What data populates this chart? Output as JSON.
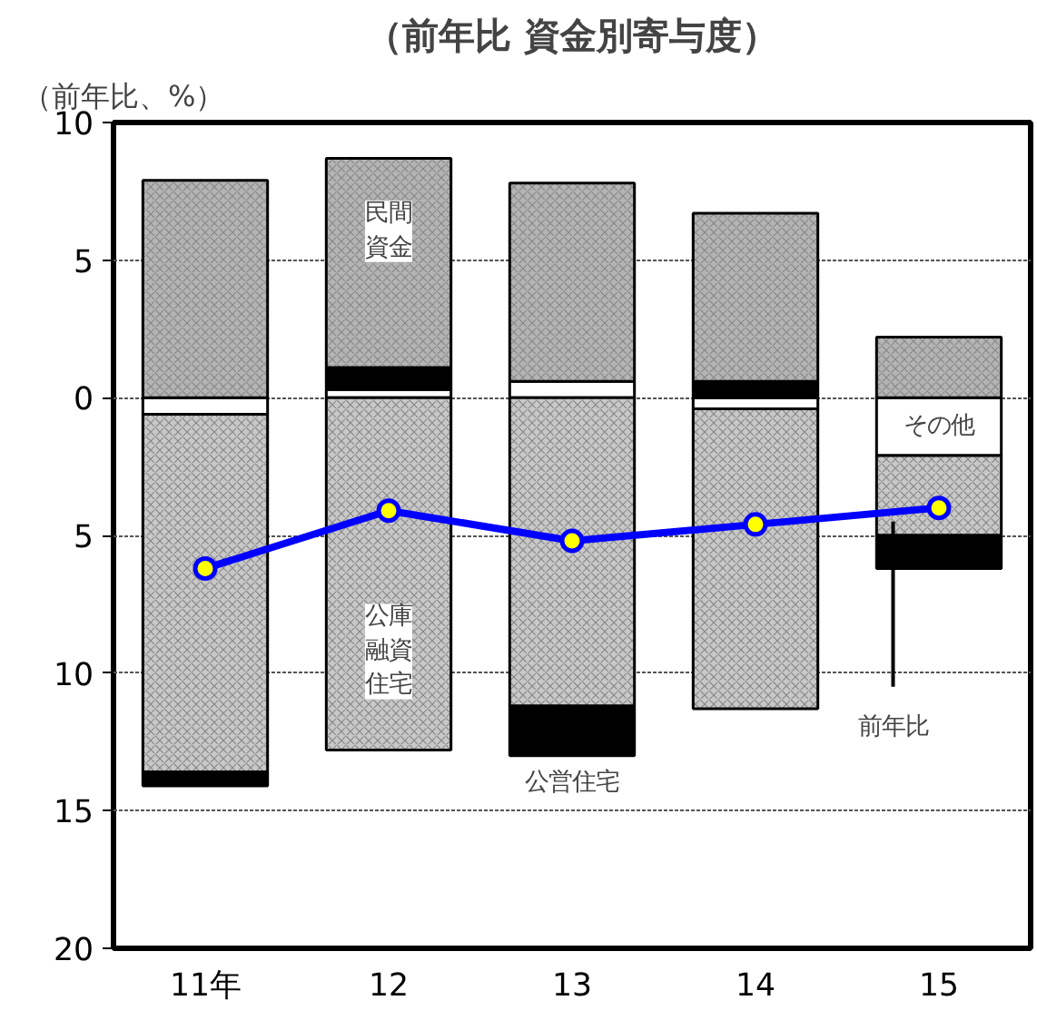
{
  "chart_data": {
    "type": "bar",
    "stacked": true,
    "title": "（前年比 資金別寄与度）",
    "ylabel": "（前年比、%）",
    "categories": [
      "11年",
      "12",
      "13",
      "14",
      "15"
    ],
    "series": [
      {
        "name": "その他",
        "color": "#ffffff",
        "values": [
          -0.6,
          0.3,
          0.6,
          -0.4,
          -2.1
        ]
      },
      {
        "name": "公庫融資住宅",
        "color": "#c8c8c8",
        "values": [
          -13.0,
          -12.8,
          -11.2,
          -10.9,
          -2.9
        ]
      },
      {
        "name": "公営住宅",
        "color": "#000000",
        "values": [
          -0.5,
          0.8,
          -1.8,
          0.6,
          -1.2
        ]
      },
      {
        "name": "民間資金",
        "color": "#b4b4b4",
        "values": [
          7.9,
          7.6,
          7.2,
          6.1,
          2.2
        ]
      },
      {
        "name": "前年比",
        "type": "line",
        "color": "#0000ff",
        "values": [
          -6.2,
          -4.1,
          -5.2,
          -4.6,
          -4.0
        ]
      }
    ],
    "ylim": [
      -20,
      10
    ],
    "yticks": [
      10,
      5,
      0,
      {
        "value": -5,
        "label": "5"
      },
      {
        "value": -10,
        "label": "10"
      },
      {
        "value": -15,
        "label": "15"
      },
      {
        "value": -20,
        "label": "20"
      }
    ],
    "grid": "y",
    "marker": "circle",
    "line_style": "solid"
  }
}
